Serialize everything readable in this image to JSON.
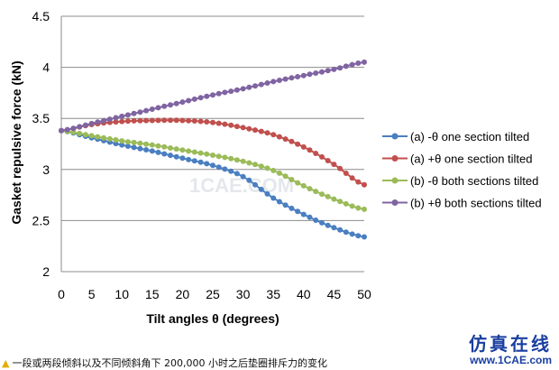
{
  "chart_data": {
    "type": "line",
    "xlabel": "Tilt angles θ (degrees)",
    "ylabel": "Gasket repulsive force (kN)",
    "xlim": [
      0,
      50
    ],
    "ylim": [
      2,
      4.5
    ],
    "xticks": [
      0,
      5,
      10,
      15,
      20,
      25,
      30,
      35,
      40,
      45,
      50
    ],
    "yticks": [
      "2",
      "2.5",
      "3",
      "3.5",
      "4",
      "4.5"
    ],
    "grid": "horizontal",
    "legend_position": "right",
    "x": [
      0,
      5,
      10,
      15,
      20,
      25,
      30,
      35,
      40,
      45,
      50
    ],
    "series": [
      {
        "name": "(a) -θ one section tilted",
        "color": "#4a7fc1",
        "values": [
          3.38,
          3.31,
          3.24,
          3.18,
          3.11,
          3.04,
          2.93,
          2.72,
          2.56,
          2.43,
          2.34
        ]
      },
      {
        "name": "(a) +θ one section tilted",
        "color": "#c0504d",
        "values": [
          3.38,
          3.44,
          3.47,
          3.48,
          3.48,
          3.46,
          3.41,
          3.34,
          3.22,
          3.05,
          2.85
        ]
      },
      {
        "name": "(b) -θ both sections tilted",
        "color": "#9bbb59",
        "values": [
          3.38,
          3.33,
          3.28,
          3.24,
          3.19,
          3.14,
          3.08,
          2.99,
          2.84,
          2.71,
          2.61
        ]
      },
      {
        "name": "(b) +θ both sections tilted",
        "color": "#8064a2",
        "values": [
          3.38,
          3.45,
          3.52,
          3.59,
          3.66,
          3.73,
          3.79,
          3.86,
          3.92,
          3.98,
          4.05
        ]
      }
    ]
  },
  "watermark": "1CAE.COM",
  "caption": "一段或两段倾斜以及不同倾斜角下 200,000 小时之后垫圈排斥力的变化",
  "brand": {
    "cn": "仿真在线",
    "url": "www.1CAE.com"
  }
}
